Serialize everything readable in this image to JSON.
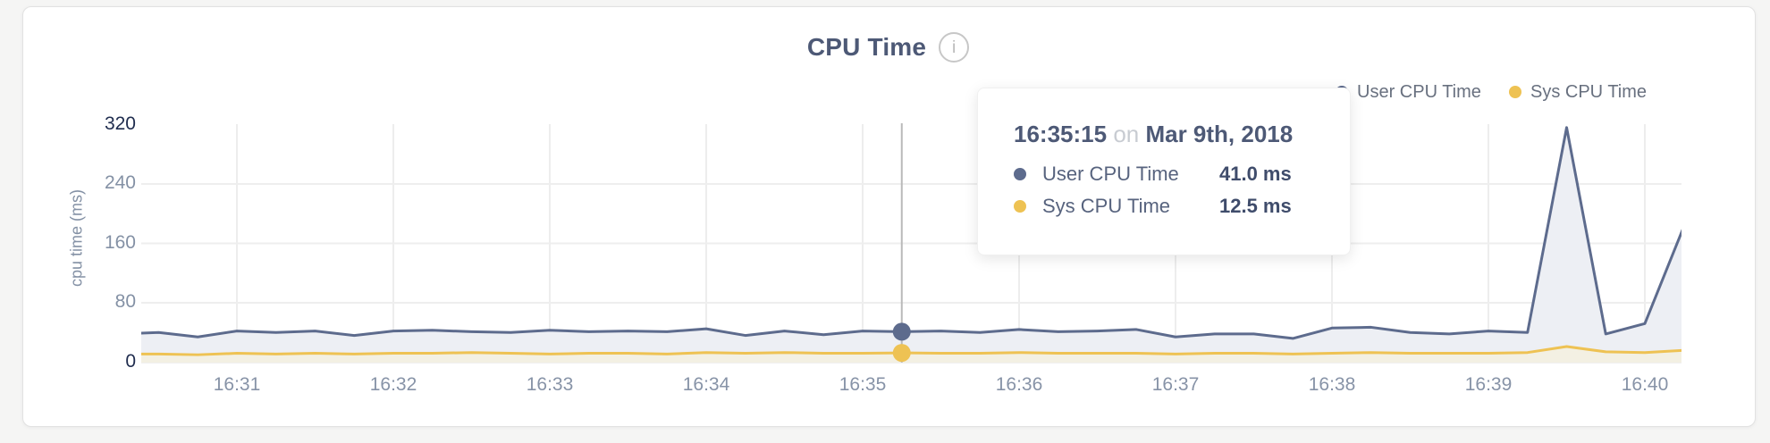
{
  "header": {
    "title": "CPU Time",
    "info_icon_glyph": "i"
  },
  "legend": [
    {
      "label": "User CPU Time",
      "color": "#5d6b8d"
    },
    {
      "label": "Sys CPU Time",
      "color": "#eec253"
    }
  ],
  "tooltip": {
    "time": "16:35:15",
    "conjunction": "on",
    "date": "Mar 9th, 2018",
    "rows": [
      {
        "label": "User CPU Time",
        "value": "41.0 ms",
        "color": "#5d6b8d"
      },
      {
        "label": "Sys CPU Time",
        "value": "12.5 ms",
        "color": "#eec253"
      }
    ]
  },
  "chart_data": {
    "type": "area",
    "title": "CPU Time",
    "xlabel": "",
    "ylabel": "cpu time (ms)",
    "ylim": [
      0,
      355
    ],
    "grid": true,
    "legend_position": "top-right",
    "yticks": [
      {
        "label": "0",
        "value": 0,
        "emphasized": true
      },
      {
        "label": "80",
        "value": 80,
        "emphasized": false
      },
      {
        "label": "160",
        "value": 160,
        "emphasized": false
      },
      {
        "label": "240",
        "value": 240,
        "emphasized": false
      },
      {
        "label": "320",
        "value": 320,
        "emphasized": true
      }
    ],
    "xticks": [
      "16:31",
      "16:32",
      "16:33",
      "16:34",
      "16:35",
      "16:36",
      "16:37",
      "16:38",
      "16:39",
      "16:40"
    ],
    "x_times": [
      "16:30:15",
      "16:30:30",
      "16:30:45",
      "16:31:00",
      "16:31:15",
      "16:31:30",
      "16:31:45",
      "16:32:00",
      "16:32:15",
      "16:32:30",
      "16:32:45",
      "16:33:00",
      "16:33:15",
      "16:33:30",
      "16:33:45",
      "16:34:00",
      "16:34:15",
      "16:34:30",
      "16:34:45",
      "16:35:00",
      "16:35:15",
      "16:35:30",
      "16:35:45",
      "16:36:00",
      "16:36:15",
      "16:36:30",
      "16:36:45",
      "16:37:00",
      "16:37:15",
      "16:37:30",
      "16:37:45",
      "16:38:00",
      "16:38:15",
      "16:38:30",
      "16:38:45",
      "16:39:00",
      "16:39:15",
      "16:39:30",
      "16:39:45",
      "16:40:00",
      "16:40:15"
    ],
    "series": [
      {
        "name": "User CPU Time",
        "color": "#5d6b8d",
        "fill": "#edeff4",
        "unit": "ms",
        "values": [
          38,
          40,
          34,
          42,
          40,
          42,
          36,
          42,
          43,
          41,
          40,
          43,
          41,
          42,
          41,
          45,
          36,
          42,
          37,
          42,
          41,
          42,
          40,
          44,
          41,
          42,
          44,
          34,
          38,
          38,
          32,
          46,
          47,
          40,
          38,
          42,
          40,
          316,
          38,
          52,
          183
        ]
      },
      {
        "name": "Sys CPU Time",
        "color": "#eec253",
        "fill": "#f3f0e3",
        "unit": "ms",
        "values": [
          11,
          11,
          10,
          12,
          11,
          12,
          11,
          12,
          12,
          13,
          12,
          11,
          12,
          12,
          11,
          13,
          12,
          13,
          12,
          12,
          12.5,
          12,
          12,
          13,
          12,
          12,
          12,
          11,
          12,
          12,
          11,
          12,
          13,
          12,
          12,
          12,
          13,
          21,
          14,
          13,
          16
        ]
      }
    ],
    "hover": {
      "time": "16:35:15",
      "date": "Mar 9th, 2018",
      "user_cpu_ms": 41.0,
      "sys_cpu_ms": 12.5
    }
  }
}
